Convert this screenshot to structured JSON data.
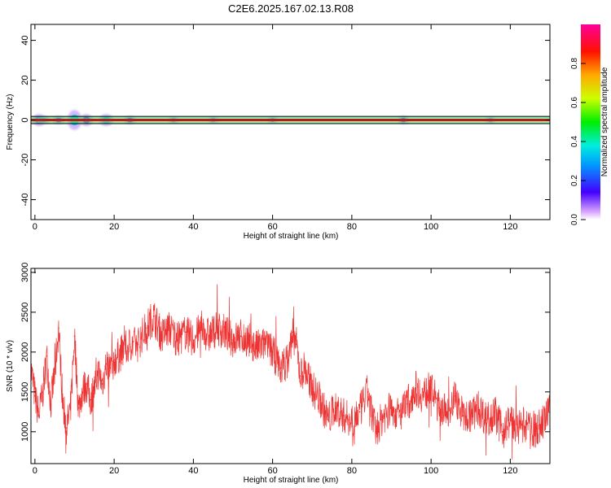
{
  "title": "C2E6.2025.167.02.13.R08",
  "chart_data": [
    {
      "type": "heatmap",
      "xlabel": "Height of straight line (km)",
      "ylabel": "Frequency (Hz)",
      "xlim": [
        -1,
        130
      ],
      "ylim": [
        -50,
        48
      ],
      "x_ticks": [
        0,
        20,
        40,
        60,
        80,
        100,
        120
      ],
      "y_ticks": [
        -40,
        -20,
        0,
        20,
        40
      ],
      "colorbar": {
        "label": "Normalized spectral amplitude",
        "range": [
          0,
          1
        ],
        "ticks": [
          0.0,
          0.2,
          0.4,
          0.6,
          0.8
        ]
      },
      "band": {
        "center_hz": 0,
        "core_halfwidth_hz": 0.6,
        "box_halfwidth_hz": 1.8,
        "spots": [
          {
            "x": 1,
            "amplitude": 0.3,
            "spread_hz": 3
          },
          {
            "x": 2,
            "amplitude": 0.45,
            "spread_hz": 2
          },
          {
            "x": 6,
            "amplitude": 0.2,
            "spread_hz": 2
          },
          {
            "x": 10,
            "amplitude": 0.45,
            "spread_hz": 5
          },
          {
            "x": 13,
            "amplitude": 0.3,
            "spread_hz": 3
          },
          {
            "x": 18,
            "amplitude": 0.45,
            "spread_hz": 3
          },
          {
            "x": 24,
            "amplitude": 0.2,
            "spread_hz": 2
          },
          {
            "x": 35,
            "amplitude": 0.1,
            "spread_hz": 1.5
          },
          {
            "x": 45,
            "amplitude": 0.1,
            "spread_hz": 1.5
          },
          {
            "x": 60,
            "amplitude": 0.1,
            "spread_hz": 1.5
          },
          {
            "x": 93,
            "amplitude": 0.12,
            "spread_hz": 2
          },
          {
            "x": 115,
            "amplitude": 0.1,
            "spread_hz": 1.5
          }
        ]
      }
    },
    {
      "type": "line",
      "xlabel": "Height of straight line (km)",
      "ylabel": "SNR (10 * v/v)",
      "xlim": [
        -1,
        130
      ],
      "ylim": [
        600,
        3050
      ],
      "x_ticks": [
        0,
        20,
        40,
        60,
        80,
        100,
        120
      ],
      "y_ticks": [
        1000,
        1500,
        2000,
        2500,
        3000
      ],
      "series": [
        {
          "color": "#ee3333",
          "x": [
            -1,
            0,
            1,
            2,
            3,
            4,
            5,
            6,
            7,
            8,
            9,
            10,
            11,
            12,
            13,
            14,
            15,
            16,
            17,
            18,
            19,
            20,
            22,
            24,
            26,
            28,
            30,
            32,
            34,
            36,
            38,
            40,
            42,
            44,
            46,
            48,
            50,
            52,
            54,
            56,
            58,
            60,
            62,
            64,
            65,
            66,
            67,
            68,
            70,
            72,
            74,
            76,
            78,
            80,
            82,
            84,
            86,
            88,
            90,
            92,
            94,
            96,
            98,
            100,
            102,
            104,
            106,
            108,
            110,
            112,
            114,
            116,
            118,
            120,
            122,
            124,
            126,
            128,
            130
          ],
          "y": [
            1800,
            1450,
            1200,
            1500,
            1950,
            1350,
            1750,
            2300,
            1400,
            1050,
            1300,
            2200,
            1300,
            1500,
            1600,
            1400,
            1550,
            1750,
            1600,
            1850,
            1800,
            1900,
            2000,
            2100,
            2100,
            2300,
            2450,
            2200,
            2300,
            2150,
            2250,
            2150,
            2300,
            2200,
            2300,
            2250,
            2150,
            2200,
            2150,
            2050,
            2100,
            2000,
            1800,
            1900,
            2250,
            2100,
            1700,
            1800,
            1550,
            1400,
            1150,
            1300,
            1200,
            1150,
            1250,
            1500,
            1000,
            1200,
            1300,
            1200,
            1350,
            1550,
            1450,
            1550,
            1300,
            1250,
            1450,
            1200,
            1200,
            1300,
            1150,
            1250,
            1000,
            1150,
            1050,
            1100,
            1000,
            1100,
            1250
          ]
        }
      ]
    }
  ]
}
